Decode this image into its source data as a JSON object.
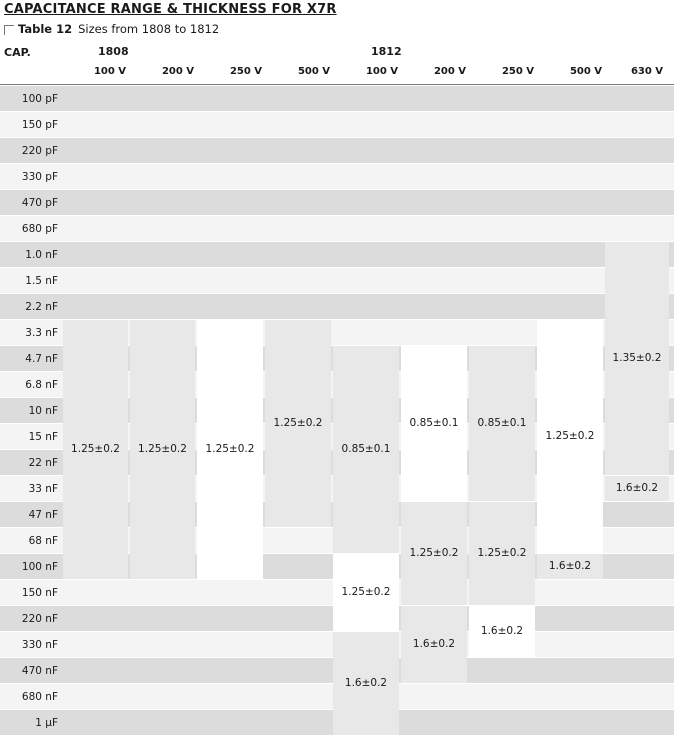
{
  "title": "CAPACITANCE RANGE & THICKNESS FOR X7R",
  "caption": {
    "label": "Table 12",
    "text": "Sizes from 1808 to 1812"
  },
  "header": {
    "cap_label": "CAP.",
    "groups": [
      "1808",
      "1812"
    ],
    "voltages": [
      "100 V",
      "200 V",
      "250 V",
      "500 V",
      "100 V",
      "200 V",
      "250 V",
      "500 V",
      "630 V"
    ]
  },
  "rows": [
    "100 pF",
    "150 pF",
    "220 pF",
    "330 pF",
    "470 pF",
    "680 pF",
    "1.0 nF",
    "1.5 nF",
    "2.2 nF",
    "3.3 nF",
    "4.7 nF",
    "6.8 nF",
    "10 nF",
    "15 nF",
    "22 nF",
    "33 nF",
    "47 nF",
    "68 nF",
    "100 nF",
    "150 nF",
    "220 nF",
    "330 nF",
    "470 nF",
    "680 nF",
    "1 µF"
  ],
  "thickness_blocks": [
    {
      "size": "1808",
      "voltage": "100 V",
      "from": "3.3 nF",
      "to": "100 nF",
      "value": "1.25±0.2"
    },
    {
      "size": "1808",
      "voltage": "200 V",
      "from": "3.3 nF",
      "to": "100 nF",
      "value": "1.25±0.2"
    },
    {
      "size": "1808",
      "voltage": "250 V",
      "from": "3.3 nF",
      "to": "100 nF",
      "value": "1.25±0.2"
    },
    {
      "size": "1808",
      "voltage": "500 V",
      "from": "3.3 nF",
      "to": "47 nF",
      "value": "1.25±0.2"
    },
    {
      "size": "1812",
      "voltage": "100 V",
      "from": "4.7 nF",
      "to": "68 nF",
      "value": "0.85±0.1"
    },
    {
      "size": "1812",
      "voltage": "100 V",
      "from": "100 nF",
      "to": "220 nF",
      "value": "1.25±0.2"
    },
    {
      "size": "1812",
      "voltage": "100 V",
      "from": "330 nF",
      "to": "1 µF",
      "value": "1.6±0.2"
    },
    {
      "size": "1812",
      "voltage": "200 V",
      "from": "4.7 nF",
      "to": "33 nF",
      "value": "0.85±0.1"
    },
    {
      "size": "1812",
      "voltage": "200 V",
      "from": "47 nF",
      "to": "150 nF",
      "value": "1.25±0.2"
    },
    {
      "size": "1812",
      "voltage": "200 V",
      "from": "220 nF",
      "to": "470 nF",
      "value": "1.6±0.2"
    },
    {
      "size": "1812",
      "voltage": "250 V",
      "from": "4.7 nF",
      "to": "33 nF",
      "value": "0.85±0.1"
    },
    {
      "size": "1812",
      "voltage": "250 V",
      "from": "47 nF",
      "to": "150 nF",
      "value": "1.25±0.2"
    },
    {
      "size": "1812",
      "voltage": "250 V",
      "from": "220 nF",
      "to": "330 nF",
      "value": "1.6±0.2"
    },
    {
      "size": "1812",
      "voltage": "500 V",
      "from": "3.3 nF",
      "to": "68 nF",
      "value": "1.25±0.2"
    },
    {
      "size": "1812",
      "voltage": "500 V",
      "from": "100 nF",
      "to": "100 nF",
      "value": "1.6±0.2"
    },
    {
      "size": "1812",
      "voltage": "630 V",
      "from": "1.0 nF",
      "to": "22 nF",
      "value": "1.35±0.2"
    },
    {
      "size": "1812",
      "voltage": "630 V",
      "from": "33 nF",
      "to": "33 nF",
      "value": "1.6±0.2"
    }
  ],
  "colors": {
    "band_dark": "#dcdcdc",
    "band_light": "#f4f4f4",
    "block_grey": "#e8e8e8",
    "block_white": "#ffffff",
    "rule": "#777777"
  }
}
